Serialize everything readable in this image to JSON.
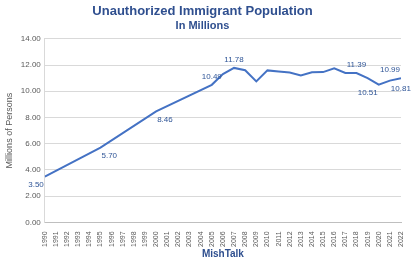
{
  "chart_data": {
    "type": "line",
    "title": "Unauthorized Immigrant Population",
    "subtitle": "In Millions",
    "ylabel": "Millions of Persons",
    "xlabel": "MishTalk",
    "x": [
      1990,
      1995,
      2000,
      2005,
      2006,
      2007,
      2008,
      2009,
      2010,
      2011,
      2012,
      2013,
      2014,
      2015,
      2016,
      2017,
      2018,
      2019,
      2020,
      2021,
      2022
    ],
    "values": [
      3.5,
      5.7,
      8.46,
      10.49,
      11.31,
      11.78,
      11.6,
      10.75,
      11.59,
      11.51,
      11.43,
      11.21,
      11.45,
      11.46,
      11.75,
      11.4,
      11.39,
      11.0,
      10.51,
      10.81,
      10.99
    ],
    "value_labels": [
      "3.50",
      "5.70",
      "8.46",
      "10.49",
      null,
      "11.78",
      null,
      null,
      null,
      null,
      null,
      null,
      null,
      null,
      null,
      null,
      "11.39",
      null,
      "10.51",
      "10.81",
      "10.99"
    ],
    "color": "#4472c4",
    "xlim": [
      1990,
      2022
    ],
    "xticks": [
      1990,
      1991,
      1992,
      1993,
      1994,
      1995,
      1996,
      1997,
      1998,
      1999,
      2000,
      2001,
      2002,
      2003,
      2004,
      2005,
      2006,
      2007,
      2008,
      2009,
      2010,
      2011,
      2012,
      2013,
      2014,
      2015,
      2016,
      2017,
      2018,
      2019,
      2020,
      2021,
      2022
    ],
    "ylim": [
      0,
      14
    ],
    "yticks": [
      {
        "value": 0,
        "label": "0.00"
      },
      {
        "value": 2,
        "label": "2.00"
      },
      {
        "value": 4,
        "label": "4.00"
      },
      {
        "value": 6,
        "label": "6.00"
      },
      {
        "value": 8,
        "label": "8.00"
      },
      {
        "value": 10,
        "label": "10.00"
      },
      {
        "value": 12,
        "label": "12.00"
      },
      {
        "value": 14,
        "label": "14.00"
      }
    ],
    "grid": true,
    "data_labels": true
  }
}
